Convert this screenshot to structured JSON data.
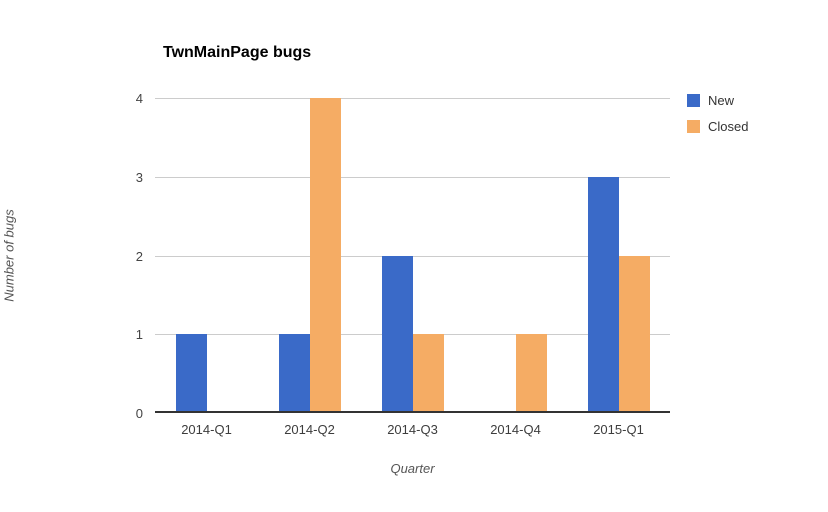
{
  "chart_data": {
    "type": "bar",
    "title": "TwnMainPage bugs",
    "xlabel": "Quarter",
    "ylabel": "Number of bugs",
    "categories": [
      "2014-Q1",
      "2014-Q2",
      "2014-Q3",
      "2014-Q4",
      "2015-Q1"
    ],
    "series": [
      {
        "name": "New",
        "color": "#3a6ac8",
        "values": [
          1,
          1,
          2,
          0,
          3
        ]
      },
      {
        "name": "Closed",
        "color": "#f5ac64",
        "values": [
          0,
          4,
          1,
          1,
          2
        ]
      }
    ],
    "yticks": [
      0,
      1,
      2,
      3,
      4
    ],
    "ylim": [
      0,
      4
    ],
    "grid": "horizontal",
    "legend_position": "right-top",
    "colors": {
      "gridline": "#cccccc",
      "baseline": "#333333",
      "tick_text": "#444444",
      "axis_title_text": "#555555",
      "title_text": "#000000"
    }
  }
}
